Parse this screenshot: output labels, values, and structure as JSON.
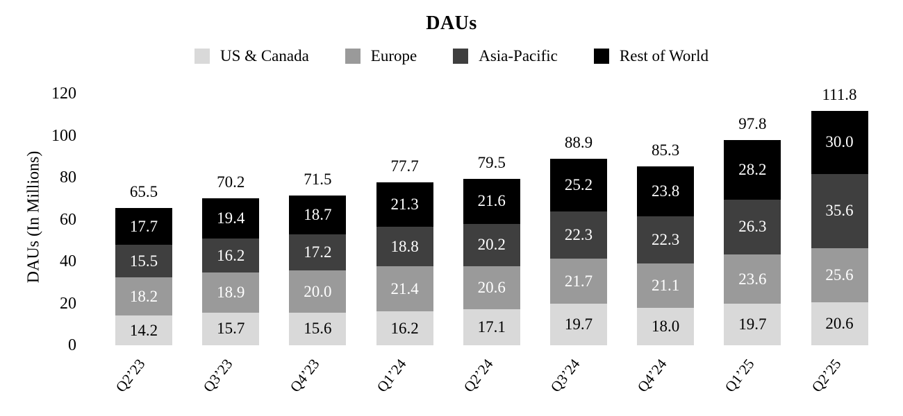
{
  "chart_data": {
    "type": "bar",
    "stacked": true,
    "title": "DAUs",
    "ylabel": "DAUs (In Millions)",
    "ylim": [
      0,
      120
    ],
    "yticks": [
      0,
      20,
      40,
      60,
      80,
      100,
      120
    ],
    "grid": false,
    "legend_position": "top",
    "categories": [
      "Q2’23",
      "Q3’23",
      "Q4’23",
      "Q1’24",
      "Q2’24",
      "Q3’24",
      "Q4’24",
      "Q1’25",
      "Q2’25"
    ],
    "series": [
      {
        "name": "US & Canada",
        "color": "#d9d9d9",
        "label_color": "#000000",
        "values": [
          14.2,
          15.7,
          15.6,
          16.2,
          17.1,
          19.7,
          18.0,
          19.7,
          20.6
        ]
      },
      {
        "name": "Europe",
        "color": "#9a9a9a",
        "label_color": "#ffffff",
        "values": [
          18.2,
          18.9,
          20.0,
          21.4,
          20.6,
          21.7,
          21.1,
          23.6,
          25.6
        ]
      },
      {
        "name": "Asia-Pacific",
        "color": "#3f3f3f",
        "label_color": "#ffffff",
        "values": [
          15.5,
          16.2,
          17.2,
          18.8,
          20.2,
          22.3,
          22.3,
          26.3,
          35.6
        ]
      },
      {
        "name": "Rest of World",
        "color": "#000000",
        "label_color": "#ffffff",
        "values": [
          17.7,
          19.4,
          18.7,
          21.3,
          21.6,
          25.2,
          23.8,
          28.2,
          30.0
        ]
      }
    ],
    "totals": [
      65.5,
      70.2,
      71.5,
      77.7,
      79.5,
      88.9,
      85.3,
      97.8,
      111.8
    ],
    "text_color": "#000000",
    "background_color": "#ffffff"
  }
}
